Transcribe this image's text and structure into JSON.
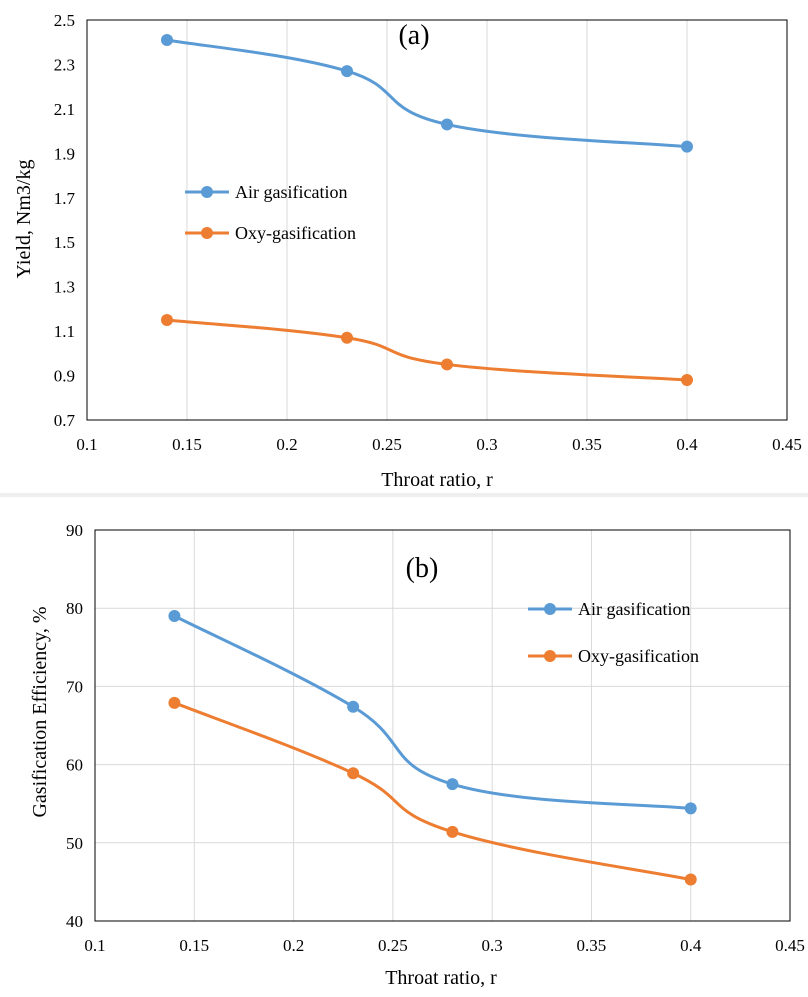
{
  "colors": {
    "air": "#5B9BD5",
    "oxy": "#ED7D31",
    "grid": "#D9D9D9",
    "axis": "#000000"
  },
  "chart_data": [
    {
      "type": "line",
      "panel_label": "(a)",
      "xlabel": "Throat ratio, r",
      "ylabel": "Yield, Nm3/kg",
      "xlim": [
        0.1,
        0.45
      ],
      "ylim": [
        0.7,
        2.5
      ],
      "x_ticks": [
        "0.1",
        "0.15",
        "0.2",
        "0.25",
        "0.3",
        "0.35",
        "0.4",
        "0.45"
      ],
      "y_ticks": [
        "0.7",
        "0.9",
        "1.1",
        "1.3",
        "1.5",
        "1.7",
        "1.9",
        "2.1",
        "2.3",
        "2.5"
      ],
      "grid": "vertical",
      "legend_position": "center-left",
      "x": [
        0.14,
        0.23,
        0.28,
        0.4
      ],
      "series": [
        {
          "name": "Air gasification",
          "values": [
            2.41,
            2.27,
            2.03,
            1.93
          ]
        },
        {
          "name": "Oxy-gasification",
          "values": [
            1.15,
            1.07,
            0.95,
            0.88
          ]
        }
      ]
    },
    {
      "type": "line",
      "panel_label": "(b)",
      "xlabel": "Throat ratio, r",
      "ylabel": "Gasification Efficiency, %",
      "xlim": [
        0.1,
        0.45
      ],
      "ylim": [
        40,
        90
      ],
      "x_ticks": [
        "0.1",
        "0.15",
        "0.2",
        "0.25",
        "0.3",
        "0.35",
        "0.4",
        "0.45"
      ],
      "y_ticks": [
        "40",
        "50",
        "60",
        "70",
        "80",
        "90"
      ],
      "grid": "both",
      "legend_position": "top-right",
      "x": [
        0.14,
        0.23,
        0.28,
        0.4
      ],
      "series": [
        {
          "name": "Air gasification",
          "values": [
            79.0,
            67.4,
            57.5,
            54.4
          ]
        },
        {
          "name": "Oxy-gasification",
          "values": [
            67.9,
            58.9,
            51.4,
            45.3
          ]
        }
      ]
    }
  ]
}
